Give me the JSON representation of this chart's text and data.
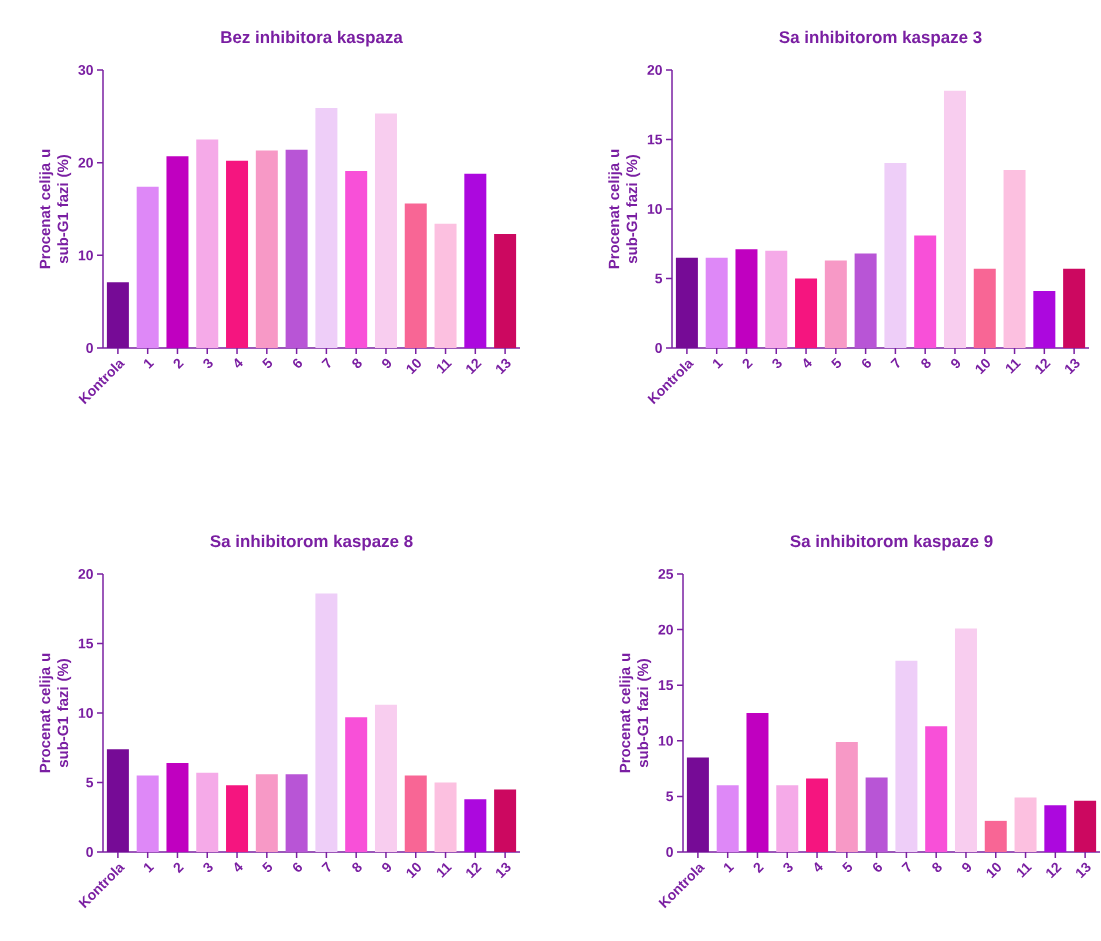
{
  "chart_data": [
    {
      "type": "bar",
      "title": "Bez inhibitora kaspaza",
      "ylabel": "Procenat celija u sub-G1 fazi (%)",
      "categories": [
        "Kontrola",
        "1",
        "2",
        "3",
        "4",
        "5",
        "6",
        "7",
        "8",
        "9",
        "10",
        "11",
        "12",
        "13"
      ],
      "values": [
        7.1,
        17.4,
        20.7,
        22.5,
        20.2,
        21.3,
        21.4,
        25.9,
        19.1,
        25.3,
        15.6,
        13.4,
        18.8,
        12.3
      ],
      "colors": [
        "#760b96",
        "#de88f7",
        "#c000c0",
        "#f5aae8",
        "#f5157f",
        "#f799c6",
        "#b855d6",
        "#eecef8",
        "#f850d8",
        "#f8cdef",
        "#f86695",
        "#fcc0e0",
        "#ac08de",
        "#cc0860"
      ],
      "ylim": [
        0,
        30
      ],
      "yticks": [
        0,
        10,
        20,
        30
      ]
    },
    {
      "type": "bar",
      "title": "Sa inhibitorom kaspaze 3",
      "ylabel": "Procenat celija u sub-G1 fazi (%)",
      "categories": [
        "Kontrola",
        "1",
        "2",
        "3",
        "4",
        "5",
        "6",
        "7",
        "8",
        "9",
        "10",
        "11",
        "12",
        "13"
      ],
      "values": [
        6.5,
        6.5,
        7.1,
        7.0,
        5.0,
        6.3,
        6.8,
        13.3,
        8.1,
        18.5,
        5.7,
        12.8,
        4.1,
        5.7
      ],
      "colors": [
        "#760b96",
        "#de88f7",
        "#c000c0",
        "#f5aae8",
        "#f5157f",
        "#f799c6",
        "#b855d6",
        "#eecef8",
        "#f850d8",
        "#f8cdef",
        "#f86695",
        "#fcc0e0",
        "#ac08de",
        "#cc0860"
      ],
      "ylim": [
        0,
        20
      ],
      "yticks": [
        0,
        5,
        10,
        15,
        20
      ]
    },
    {
      "type": "bar",
      "title": "Sa inhibitorom kaspaze 8",
      "ylabel": "Procenat celija u sub-G1 fazi (%)",
      "categories": [
        "Kontrola",
        "1",
        "2",
        "3",
        "4",
        "5",
        "6",
        "7",
        "8",
        "9",
        "10",
        "11",
        "12",
        "13"
      ],
      "values": [
        7.4,
        5.5,
        6.4,
        5.7,
        4.8,
        5.6,
        5.6,
        18.6,
        9.7,
        10.6,
        5.5,
        5.0,
        3.8,
        4.5
      ],
      "colors": [
        "#760b96",
        "#de88f7",
        "#c000c0",
        "#f5aae8",
        "#f5157f",
        "#f799c6",
        "#b855d6",
        "#eecef8",
        "#f850d8",
        "#f8cdef",
        "#f86695",
        "#fcc0e0",
        "#ac08de",
        "#cc0860"
      ],
      "ylim": [
        0,
        20
      ],
      "yticks": [
        0,
        5,
        10,
        15,
        20
      ]
    },
    {
      "type": "bar",
      "title": "Sa inhibitorom kaspaze 9",
      "ylabel": "Procenat celija u sub-G1 fazi (%)",
      "categories": [
        "Kontrola",
        "1",
        "2",
        "3",
        "4",
        "5",
        "6",
        "7",
        "8",
        "9",
        "10",
        "11",
        "12",
        "13"
      ],
      "values": [
        8.5,
        6.0,
        12.5,
        6.0,
        6.6,
        9.9,
        6.7,
        17.2,
        11.3,
        20.1,
        2.8,
        4.9,
        4.2,
        4.6
      ],
      "colors": [
        "#760b96",
        "#de88f7",
        "#c000c0",
        "#f5aae8",
        "#f5157f",
        "#f799c6",
        "#b855d6",
        "#eecef8",
        "#f850d8",
        "#f8cdef",
        "#f86695",
        "#fcc0e0",
        "#ac08de",
        "#cc0860"
      ],
      "ylim": [
        0,
        25
      ],
      "yticks": [
        0,
        5,
        10,
        15,
        20,
        25
      ]
    }
  ]
}
